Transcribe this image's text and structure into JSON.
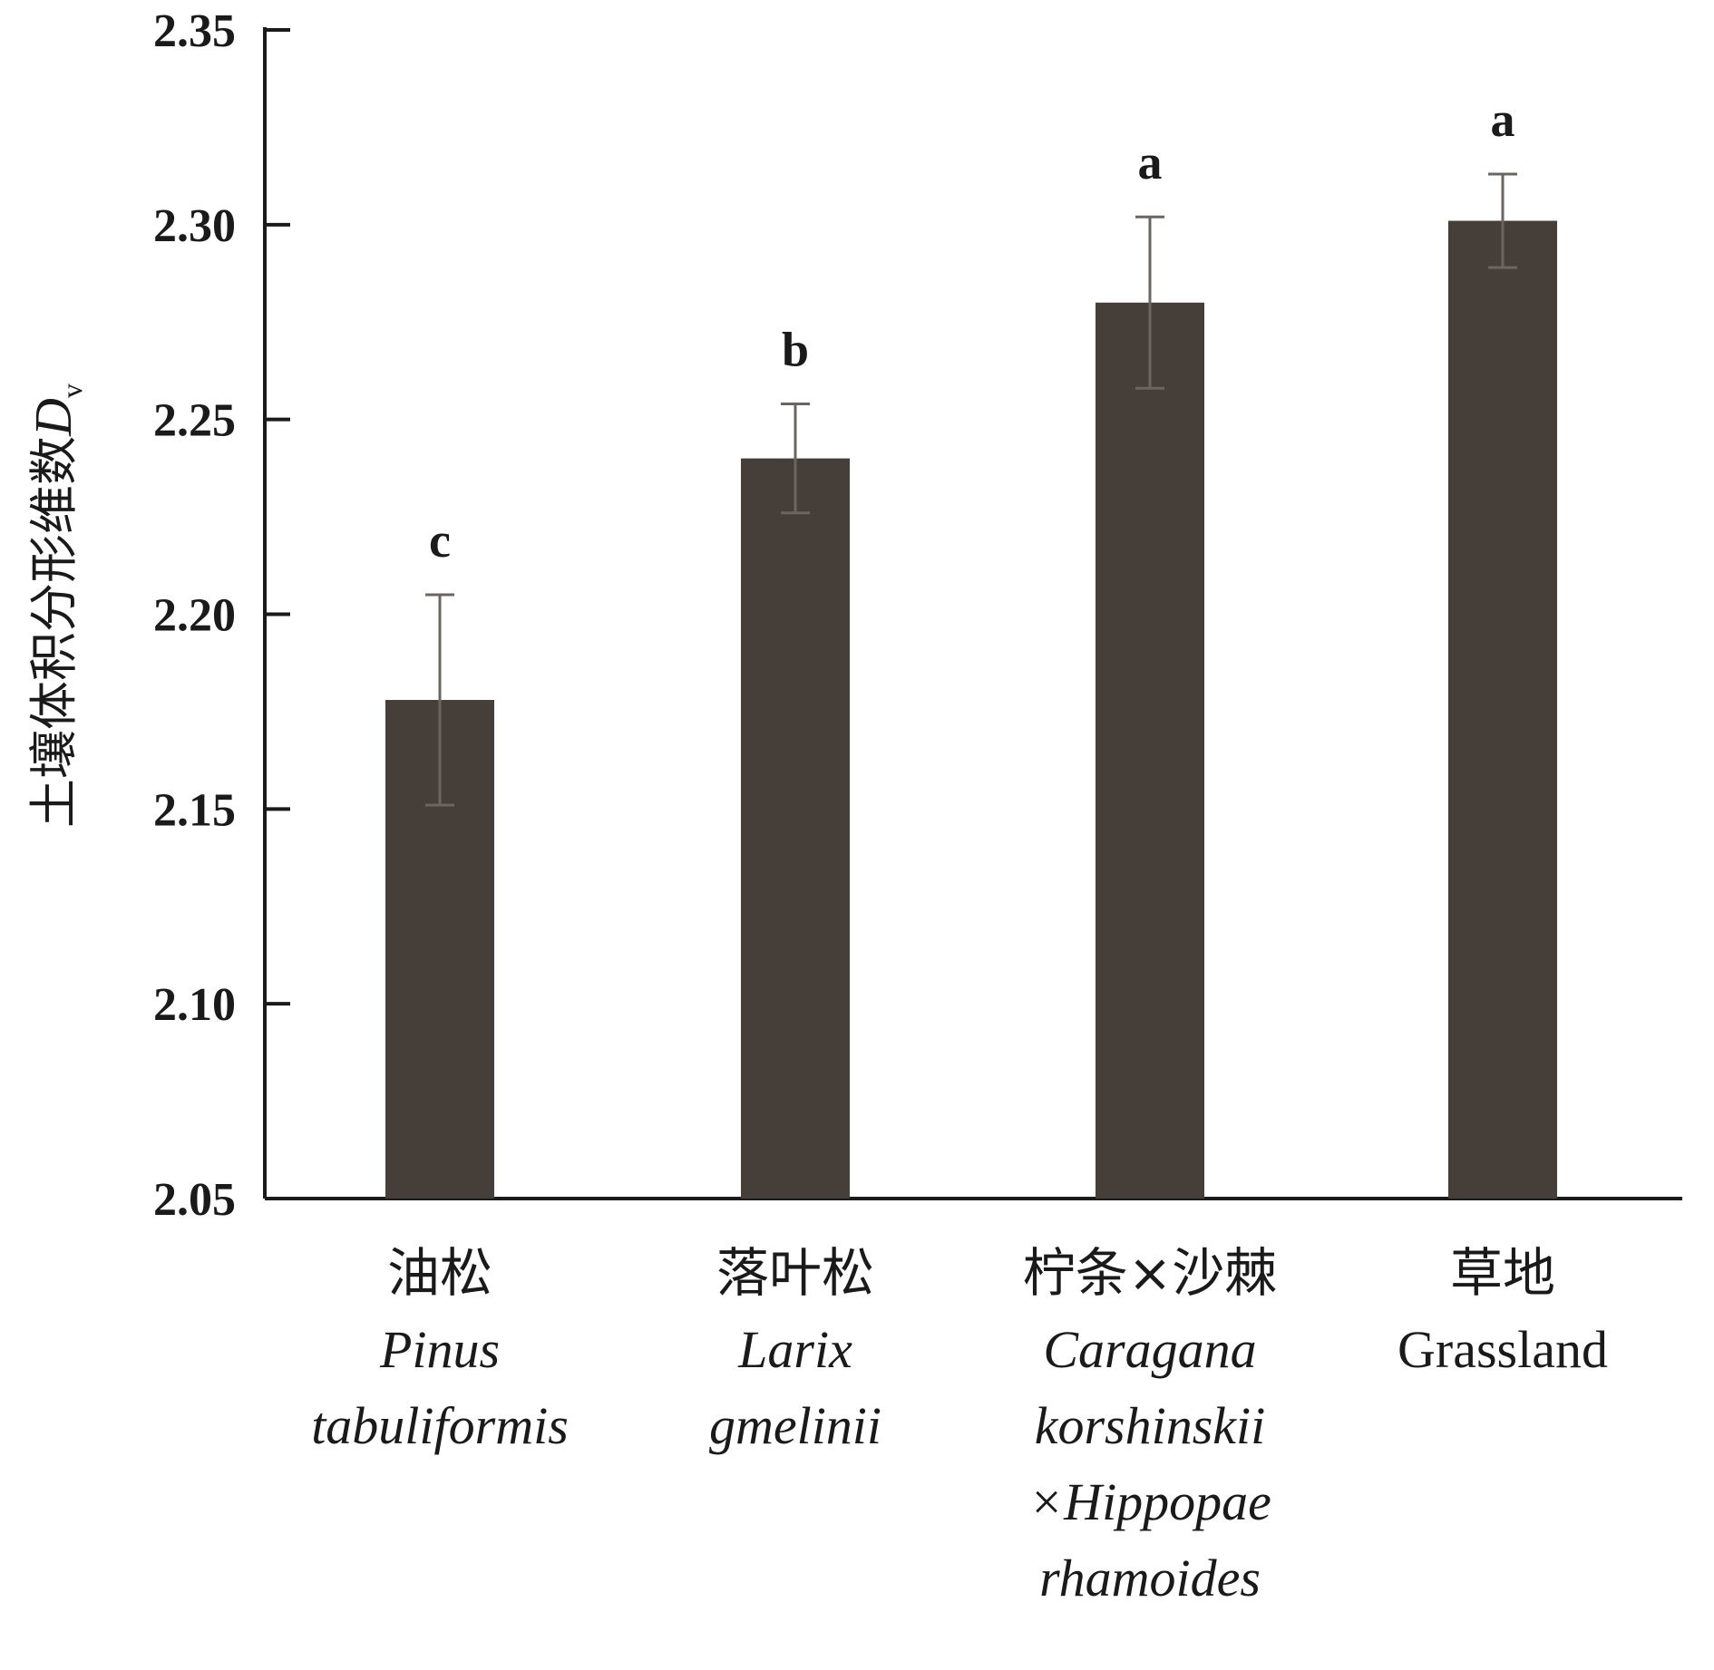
{
  "chart_data": {
    "type": "bar",
    "title": "",
    "xlabel": "",
    "ylabel": {
      "text": "土壤体积分形维数",
      "symbol": "D",
      "subscript": "v"
    },
    "ylim": [
      2.05,
      2.35
    ],
    "yticks": [
      "2.05",
      "2.10",
      "2.15",
      "2.20",
      "2.25",
      "2.30",
      "2.35"
    ],
    "grid": false,
    "bar_color": "#463e39",
    "categories": [
      {
        "cn": "油松",
        "latin": [
          "Pinus",
          "tabuliformis"
        ],
        "en": []
      },
      {
        "cn": "落叶松",
        "latin": [
          "Larix",
          "gmelinii"
        ],
        "en": []
      },
      {
        "cn": "柠条×沙棘",
        "latin": [
          "Caragana",
          "korshinskii",
          "×Hippopae",
          "rhamoides"
        ],
        "en": []
      },
      {
        "cn": "草地",
        "latin": [],
        "en": [
          "Grassland"
        ]
      }
    ],
    "values": [
      2.178,
      2.24,
      2.28,
      2.301
    ],
    "errors": [
      0.027,
      0.014,
      0.022,
      0.012
    ],
    "significance": [
      "c",
      "b",
      "a",
      "a"
    ]
  }
}
